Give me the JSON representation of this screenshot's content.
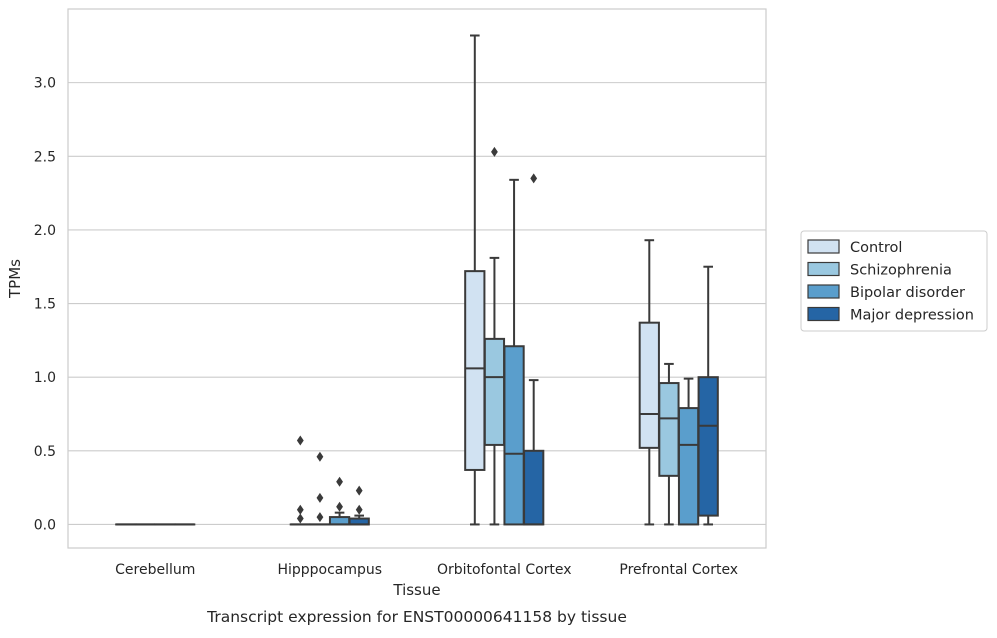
{
  "chart_data": {
    "type": "box",
    "title": "",
    "caption": "Transcript expression for ENST00000641158 by tissue",
    "xlabel": "Tissue",
    "ylabel": "TPMs",
    "ylim": [
      -0.16,
      3.5
    ],
    "yticks": [
      0.0,
      0.5,
      1.0,
      1.5,
      2.0,
      2.5,
      3.0
    ],
    "ytick_labels": [
      "0.0",
      "0.5",
      "1.0",
      "1.5",
      "2.0",
      "2.5",
      "3.0"
    ],
    "grid": "horizontal",
    "legend_position": "right",
    "categories": [
      "Cerebellum",
      "Hipppocampus",
      "Orbitofontal Cortex",
      "Prefrontal Cortex"
    ],
    "series": [
      {
        "name": "Control",
        "color": "#d1e2f2",
        "boxes": [
          {
            "min": 0.0,
            "q1": 0.0,
            "median": 0.0,
            "q3": 0.0,
            "max": 0.0,
            "outliers": []
          },
          {
            "min": 0.0,
            "q1": 0.0,
            "median": 0.0,
            "q3": 0.0,
            "max": 0.0,
            "outliers": [
              0.04,
              0.1,
              0.57
            ]
          },
          {
            "min": 0.0,
            "q1": 0.37,
            "median": 1.06,
            "q3": 1.72,
            "max": 3.32,
            "outliers": []
          },
          {
            "min": 0.0,
            "q1": 0.52,
            "median": 0.75,
            "q3": 1.37,
            "max": 1.93,
            "outliers": []
          }
        ]
      },
      {
        "name": "Schizophrenia",
        "color": "#9ac8e0",
        "boxes": [
          {
            "min": 0.0,
            "q1": 0.0,
            "median": 0.0,
            "q3": 0.0,
            "max": 0.0,
            "outliers": []
          },
          {
            "min": 0.0,
            "q1": 0.0,
            "median": 0.0,
            "q3": 0.0,
            "max": 0.0,
            "outliers": [
              0.05,
              0.18,
              0.46
            ]
          },
          {
            "min": 0.0,
            "q1": 0.54,
            "median": 1.0,
            "q3": 1.26,
            "max": 1.81,
            "outliers": [
              2.53
            ]
          },
          {
            "min": 0.0,
            "q1": 0.33,
            "median": 0.72,
            "q3": 0.96,
            "max": 1.09,
            "outliers": []
          }
        ]
      },
      {
        "name": "Bipolar disorder",
        "color": "#5a9ecc",
        "boxes": [
          {
            "min": 0.0,
            "q1": 0.0,
            "median": 0.0,
            "q3": 0.0,
            "max": 0.0,
            "outliers": []
          },
          {
            "min": 0.0,
            "q1": 0.0,
            "median": 0.0,
            "q3": 0.05,
            "max": 0.08,
            "outliers": [
              0.12,
              0.29
            ]
          },
          {
            "min": 0.0,
            "q1": 0.0,
            "median": 0.48,
            "q3": 1.21,
            "max": 2.34,
            "outliers": []
          },
          {
            "min": 0.0,
            "q1": 0.0,
            "median": 0.54,
            "q3": 0.79,
            "max": 0.99,
            "outliers": []
          }
        ]
      },
      {
        "name": "Major depression",
        "color": "#2565a5",
        "boxes": [
          {
            "min": 0.0,
            "q1": 0.0,
            "median": 0.0,
            "q3": 0.0,
            "max": 0.0,
            "outliers": []
          },
          {
            "min": 0.0,
            "q1": 0.0,
            "median": 0.0,
            "q3": 0.04,
            "max": 0.06,
            "outliers": [
              0.1,
              0.23
            ]
          },
          {
            "min": 0.0,
            "q1": 0.0,
            "median": 0.0,
            "q3": 0.5,
            "max": 0.98,
            "outliers": [
              2.35
            ]
          },
          {
            "min": 0.0,
            "q1": 0.06,
            "median": 0.67,
            "q3": 1.0,
            "max": 1.75,
            "outliers": []
          }
        ]
      }
    ]
  }
}
